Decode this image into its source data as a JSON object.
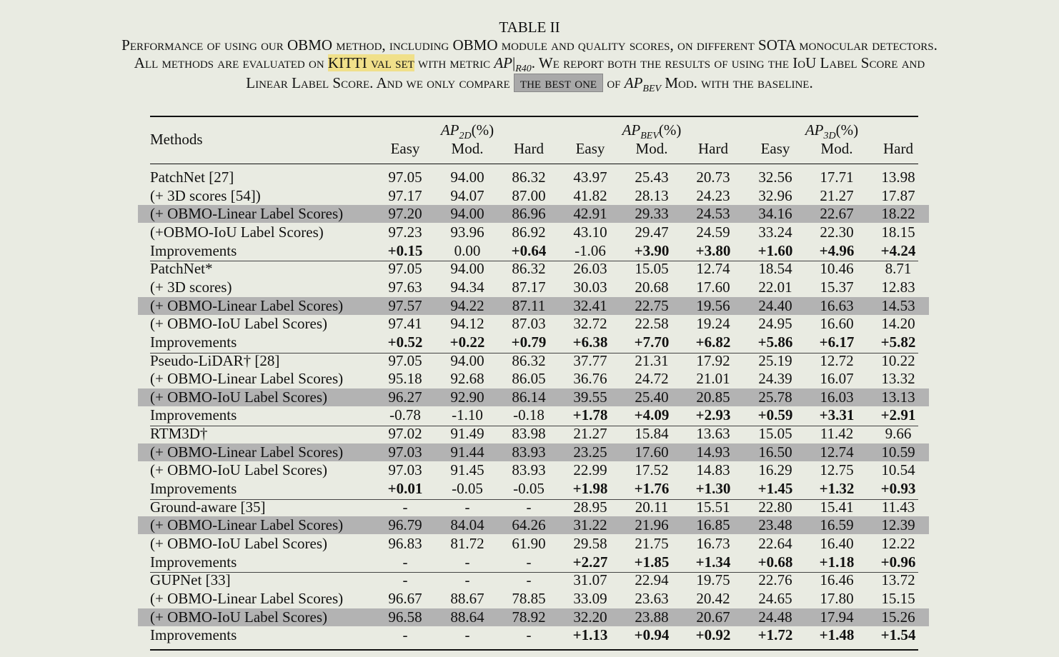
{
  "caption": {
    "table_no": "TABLE II",
    "line1": "Performance of using our OBMO method, including OBMO module and quality scores, on different SOTA monocular detectors.",
    "line2_a": "All methods are evaluated on ",
    "line2_highlight": "KITTI val set",
    "line2_b": " with metric ",
    "line2_metric": "AP",
    "line2_metric_sub": "R40",
    "line2_c": ". We report both the results of using the IoU Label Score and",
    "line3_a": "Linear Label Score. And we only compare ",
    "line3_highlight": "the best one",
    "line3_b": " of ",
    "line3_metric": "AP",
    "line3_metric_sub": "BEV",
    "line3_c": " Mod. with the baseline.",
    "highlight_colors": {
      "yellow": "#f0e08a",
      "gray": "#a9a9a9"
    }
  },
  "table": {
    "methods_header": "Methods",
    "groups": [
      {
        "label": "AP",
        "sub": "2D",
        "unit": "(%)"
      },
      {
        "label": "AP",
        "sub": "BEV",
        "unit": "(%)"
      },
      {
        "label": "AP",
        "sub": "3D",
        "unit": "(%)"
      }
    ],
    "subheaders": [
      "Easy",
      "Mod.",
      "Hard",
      "Easy",
      "Mod.",
      "Hard",
      "Easy",
      "Mod.",
      "Hard"
    ],
    "row_highlight_color": "#b3b3b3",
    "rows": [
      {
        "method": "PatchNet [27]",
        "values": [
          "97.05",
          "94.00",
          "86.32",
          "43.97",
          "25.43",
          "20.73",
          "32.56",
          "17.71",
          "13.98"
        ],
        "bold": [],
        "highlight": false
      },
      {
        "method": "(+ 3D scores [54])",
        "values": [
          "97.17",
          "94.07",
          "87.00",
          "41.82",
          "28.13",
          "24.23",
          "32.96",
          "21.27",
          "17.87"
        ],
        "bold": [],
        "highlight": false
      },
      {
        "method": "(+ OBMO-Linear Label Scores)",
        "values": [
          "97.20",
          "94.00",
          "86.96",
          "42.91",
          "29.33",
          "24.53",
          "34.16",
          "22.67",
          "18.22"
        ],
        "bold": [],
        "highlight": true
      },
      {
        "method": "(+OBMO-IoU Label Scores)",
        "values": [
          "97.23",
          "93.96",
          "86.92",
          "43.10",
          "29.47",
          "24.59",
          "33.24",
          "22.30",
          "18.15"
        ],
        "bold": [],
        "highlight": false
      },
      {
        "method": "Improvements",
        "values": [
          "+0.15",
          "0.00",
          "+0.64",
          "-1.06",
          "+3.90",
          "+3.80",
          "+1.60",
          "+4.96",
          "+4.24"
        ],
        "bold": [
          0,
          2,
          4,
          5,
          6,
          7,
          8
        ],
        "highlight": false,
        "group_end": true
      },
      {
        "method": "PatchNet*",
        "values": [
          "97.05",
          "94.00",
          "86.32",
          "26.03",
          "15.05",
          "12.74",
          "18.54",
          "10.46",
          "8.71"
        ],
        "bold": [],
        "highlight": false
      },
      {
        "method": "(+ 3D scores)",
        "values": [
          "97.63",
          "94.34",
          "87.17",
          "30.03",
          "20.68",
          "17.60",
          "22.01",
          "15.37",
          "12.83"
        ],
        "bold": [],
        "highlight": false
      },
      {
        "method": "(+ OBMO-Linear Label Scores)",
        "values": [
          "97.57",
          "94.22",
          "87.11",
          "32.41",
          "22.75",
          "19.56",
          "24.40",
          "16.63",
          "14.53"
        ],
        "bold": [],
        "highlight": true
      },
      {
        "method": "(+ OBMO-IoU Label Scores)",
        "values": [
          "97.41",
          "94.12",
          "87.03",
          "32.72",
          "22.58",
          "19.24",
          "24.95",
          "16.60",
          "14.20"
        ],
        "bold": [],
        "highlight": false
      },
      {
        "method": "Improvements",
        "values": [
          "+0.52",
          "+0.22",
          "+0.79",
          "+6.38",
          "+7.70",
          "+6.82",
          "+5.86",
          "+6.17",
          "+5.82"
        ],
        "bold": [
          0,
          1,
          2,
          3,
          4,
          5,
          6,
          7,
          8
        ],
        "highlight": false,
        "group_end": true
      },
      {
        "method": "Pseudo-LiDAR† [28]",
        "values": [
          "97.05",
          "94.00",
          "86.32",
          "37.77",
          "21.31",
          "17.92",
          "25.19",
          "12.72",
          "10.22"
        ],
        "bold": [],
        "highlight": false
      },
      {
        "method": "(+ OBMO-Linear Label Scores)",
        "values": [
          "95.18",
          "92.68",
          "86.05",
          "36.76",
          "24.72",
          "21.01",
          "24.39",
          "16.07",
          "13.32"
        ],
        "bold": [],
        "highlight": false
      },
      {
        "method": "(+ OBMO-IoU Label Scores)",
        "values": [
          "96.27",
          "92.90",
          "86.14",
          "39.55",
          "25.40",
          "20.85",
          "25.78",
          "16.03",
          "13.13"
        ],
        "bold": [],
        "highlight": true
      },
      {
        "method": "Improvements",
        "values": [
          "-0.78",
          "-1.10",
          "-0.18",
          "+1.78",
          "+4.09",
          "+2.93",
          "+0.59",
          "+3.31",
          "+2.91"
        ],
        "bold": [
          3,
          4,
          5,
          6,
          7,
          8
        ],
        "highlight": false,
        "group_end": true
      },
      {
        "method": "RTM3D†",
        "values": [
          "97.02",
          "91.49",
          "83.98",
          "21.27",
          "15.84",
          "13.63",
          "15.05",
          "11.42",
          "9.66"
        ],
        "bold": [],
        "highlight": false
      },
      {
        "method": "(+ OBMO-Linear Label Scores)",
        "values": [
          "97.03",
          "91.44",
          "83.93",
          "23.25",
          "17.60",
          "14.93",
          "16.50",
          "12.74",
          "10.59"
        ],
        "bold": [],
        "highlight": true
      },
      {
        "method": "(+ OBMO-IoU Label Scores)",
        "values": [
          "97.03",
          "91.45",
          "83.93",
          "22.99",
          "17.52",
          "14.83",
          "16.29",
          "12.75",
          "10.54"
        ],
        "bold": [],
        "highlight": false
      },
      {
        "method": "Improvements",
        "values": [
          "+0.01",
          "-0.05",
          "-0.05",
          "+1.98",
          "+1.76",
          "+1.30",
          "+1.45",
          "+1.32",
          "+0.93"
        ],
        "bold": [
          0,
          3,
          4,
          5,
          6,
          7,
          8
        ],
        "highlight": false,
        "group_end": true
      },
      {
        "method": "Ground-aware [35]",
        "values": [
          "-",
          "-",
          "-",
          "28.95",
          "20.11",
          "15.51",
          "22.80",
          "15.41",
          "11.43"
        ],
        "bold": [],
        "highlight": false
      },
      {
        "method": "(+ OBMO-Linear Label Scores)",
        "values": [
          "96.79",
          "84.04",
          "64.26",
          "31.22",
          "21.96",
          "16.85",
          "23.48",
          "16.59",
          "12.39"
        ],
        "bold": [],
        "highlight": true
      },
      {
        "method": "(+ OBMO-IoU Label Scores)",
        "values": [
          "96.83",
          "81.72",
          "61.90",
          "29.58",
          "21.75",
          "16.73",
          "22.64",
          "16.40",
          "12.22"
        ],
        "bold": [],
        "highlight": false
      },
      {
        "method": "Improvements",
        "values": [
          "-",
          "-",
          "-",
          "+2.27",
          "+1.85",
          "+1.34",
          "+0.68",
          "+1.18",
          "+0.96"
        ],
        "bold": [
          3,
          4,
          5,
          6,
          7,
          8
        ],
        "highlight": false,
        "group_end": true
      },
      {
        "method": "GUPNet [33]",
        "values": [
          "-",
          "-",
          "-",
          "31.07",
          "22.94",
          "19.75",
          "22.76",
          "16.46",
          "13.72"
        ],
        "bold": [],
        "highlight": false
      },
      {
        "method": "(+ OBMO-Linear Label Scores)",
        "values": [
          "96.67",
          "88.67",
          "78.85",
          "33.09",
          "23.63",
          "20.42",
          "24.65",
          "17.80",
          "15.15"
        ],
        "bold": [],
        "highlight": false
      },
      {
        "method": "(+ OBMO-IoU Label Scores)",
        "values": [
          "96.58",
          "88.64",
          "78.92",
          "32.20",
          "23.88",
          "20.67",
          "24.48",
          "17.94",
          "15.26"
        ],
        "bold": [],
        "highlight": true
      },
      {
        "method": "Improvements",
        "values": [
          "-",
          "-",
          "-",
          "+1.13",
          "+0.94",
          "+0.92",
          "+1.72",
          "+1.48",
          "+1.54"
        ],
        "bold": [
          3,
          4,
          5,
          6,
          7,
          8
        ],
        "highlight": false
      }
    ]
  }
}
